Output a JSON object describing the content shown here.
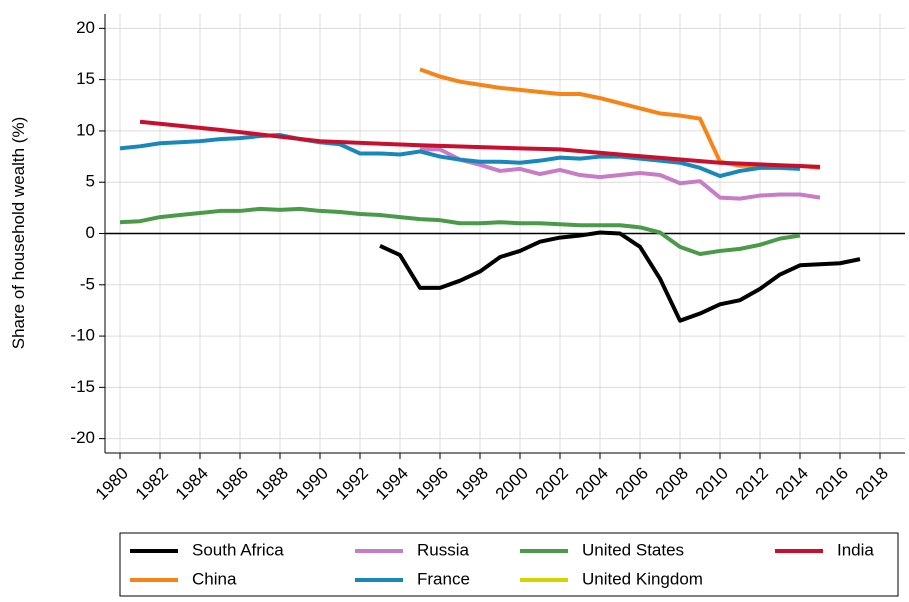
{
  "chart_data": {
    "type": "line",
    "y_label": "Share of household wealth (%)",
    "xlim": [
      1979.25,
      2019.25
    ],
    "ylim": [
      -21.4,
      21.4
    ],
    "xticks": [
      1980,
      1982,
      1984,
      1986,
      1988,
      1990,
      1992,
      1994,
      1996,
      1998,
      2000,
      2002,
      2004,
      2006,
      2008,
      2010,
      2012,
      2014,
      2016,
      2018
    ],
    "yticks": [
      -20,
      -15,
      -10,
      -5,
      0,
      5,
      10,
      15,
      20
    ],
    "grid": true,
    "legend": "bottom",
    "series": [
      {
        "name": "South Africa",
        "color": "#000000",
        "x": [
          1993,
          1994,
          1995,
          1996,
          1997,
          1998,
          1999,
          2000,
          2001,
          2002,
          2003,
          2004,
          2005,
          2006,
          2007,
          2008,
          2009,
          2010,
          2011,
          2012,
          2013,
          2014,
          2015,
          2016,
          2017
        ],
        "values": [
          -1.2,
          -2.1,
          -5.3,
          -5.3,
          -4.6,
          -3.7,
          -2.3,
          -1.7,
          -0.8,
          -0.4,
          -0.2,
          0.1,
          0,
          -1.3,
          -4.4,
          -8.5,
          -7.8,
          -6.9,
          -6.5,
          -5.4,
          -4,
          -3.1,
          -3,
          -2.9,
          -2.5
        ]
      },
      {
        "name": "China",
        "color": "#f58518",
        "x": [
          1995,
          1996,
          1997,
          1998,
          1999,
          2000,
          2001,
          2002,
          2003,
          2004,
          2005,
          2006,
          2007,
          2008,
          2009,
          2010,
          2011,
          2012,
          2013,
          2014,
          2015
        ],
        "values": [
          16,
          15.3,
          14.8,
          14.5,
          14.2,
          14,
          13.8,
          13.6,
          13.6,
          13.2,
          12.7,
          12.2,
          11.7,
          11.5,
          11.2,
          7,
          6.6,
          6.6,
          6.6,
          6.6,
          6.4
        ]
      },
      {
        "name": "Russia",
        "color": "#c77cc6",
        "x": [
          1995,
          1996,
          1997,
          1998,
          1999,
          2000,
          2001,
          2002,
          2003,
          2004,
          2005,
          2006,
          2007,
          2008,
          2009,
          2010,
          2011,
          2012,
          2013,
          2014,
          2015
        ],
        "values": [
          8.2,
          8.2,
          7.2,
          6.7,
          6.1,
          6.3,
          5.8,
          6.2,
          5.7,
          5.5,
          5.7,
          5.9,
          5.7,
          4.9,
          5.1,
          3.5,
          3.4,
          3.7,
          3.8,
          3.8,
          3.5
        ]
      },
      {
        "name": "France",
        "color": "#1a87bb",
        "x": [
          1980,
          1981,
          1982,
          1983,
          1984,
          1985,
          1986,
          1987,
          1988,
          1989,
          1990,
          1991,
          1992,
          1993,
          1994,
          1995,
          1996,
          1997,
          1998,
          1999,
          2000,
          2001,
          2002,
          2003,
          2004,
          2005,
          2006,
          2007,
          2008,
          2009,
          2010,
          2011,
          2012,
          2013,
          2014
        ],
        "values": [
          8.3,
          8.5,
          8.8,
          8.9,
          9,
          9.2,
          9.3,
          9.5,
          9.6,
          9.2,
          8.9,
          8.7,
          7.8,
          7.8,
          7.7,
          8,
          7.5,
          7.2,
          7,
          7,
          6.9,
          7.1,
          7.4,
          7.3,
          7.5,
          7.5,
          7.3,
          7.1,
          6.9,
          6.4,
          5.6,
          6.1,
          6.4,
          6.4,
          6.3
        ]
      },
      {
        "name": "United States",
        "color": "#4a9a4a",
        "x": [
          1980,
          1981,
          1982,
          1983,
          1984,
          1985,
          1986,
          1987,
          1988,
          1989,
          1990,
          1991,
          1992,
          1993,
          1994,
          1995,
          1996,
          1997,
          1998,
          1999,
          2000,
          2001,
          2002,
          2003,
          2004,
          2005,
          2006,
          2007,
          2008,
          2009,
          2010,
          2011,
          2012,
          2013,
          2014
        ],
        "values": [
          1.1,
          1.2,
          1.6,
          1.8,
          2,
          2.2,
          2.2,
          2.4,
          2.3,
          2.4,
          2.2,
          2.1,
          1.9,
          1.8,
          1.6,
          1.4,
          1.3,
          1,
          1,
          1.1,
          1,
          1,
          0.9,
          0.8,
          0.8,
          0.8,
          0.6,
          0.1,
          -1.3,
          -2,
          -1.7,
          -1.5,
          -1.1,
          -0.5,
          -0.2
        ]
      },
      {
        "name": "United Kingdom",
        "color": "#d4d400",
        "x": [],
        "values": []
      },
      {
        "name": "India",
        "color": "#c8102e",
        "x": [
          1981,
          1985,
          1990,
          1995,
          2000,
          2002,
          2005,
          2010,
          2015
        ],
        "values": [
          10.9,
          10.1,
          9.0,
          8.6,
          8.3,
          8.2,
          7.7,
          6.9,
          6.5
        ]
      }
    ]
  }
}
